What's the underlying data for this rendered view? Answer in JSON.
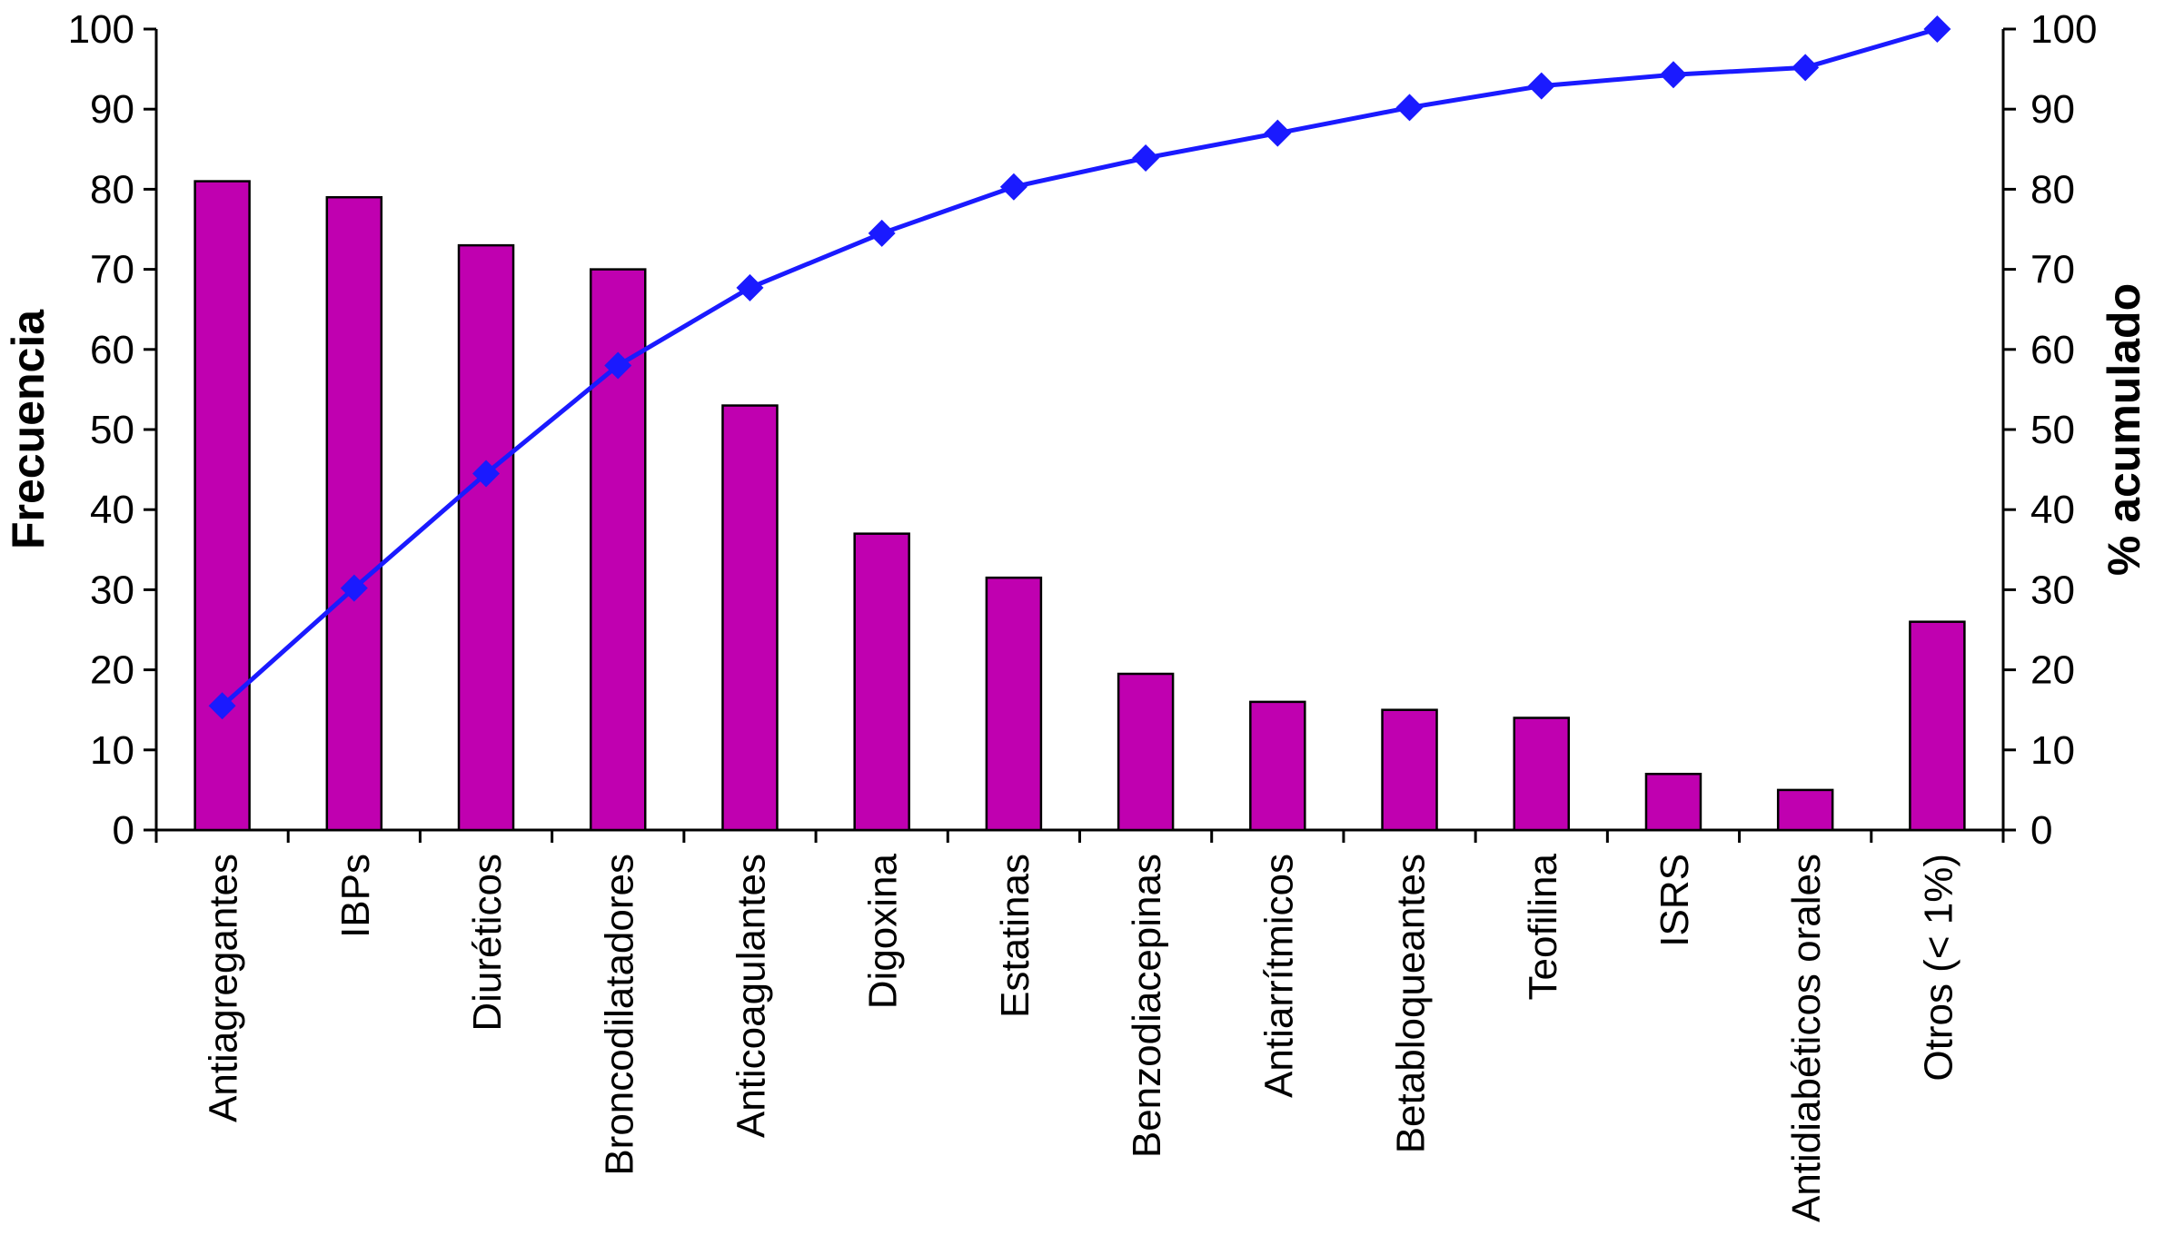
{
  "chart_data": {
    "type": "bar",
    "title": "",
    "xlabel": "",
    "ylabel": "Frecuencia",
    "y2label": "% acumulado",
    "categories": [
      "Antiagregantes",
      "IBPs",
      "Diuréticos",
      "Broncodilatadores",
      "Anticoagulantes",
      "Digoxina",
      "Estatinas",
      "Benzodiacepinas",
      "Antiarrítmicos",
      "Betabloqueantes",
      "Teofilina",
      "ISRS",
      "Antidiabéticos orales",
      "Otros (< 1%)"
    ],
    "ylim": [
      0,
      100
    ],
    "y2lim": [
      0,
      100
    ],
    "yticks": [
      0,
      10,
      20,
      30,
      40,
      50,
      60,
      70,
      80,
      90,
      100
    ],
    "y2ticks": [
      0,
      10,
      20,
      30,
      40,
      50,
      60,
      70,
      80,
      90,
      100
    ],
    "grid": false,
    "legend": "none",
    "series": [
      {
        "type": "bar",
        "axis": "left",
        "color": "#c000b0",
        "values": [
          81,
          79,
          73,
          70,
          53,
          37,
          31.5,
          19.5,
          16,
          15,
          14,
          7,
          5,
          26
        ]
      },
      {
        "type": "line",
        "axis": "right",
        "marker": "diamond",
        "color": "#1a1aff",
        "values": [
          15.5,
          30.2,
          44.5,
          58,
          67.7,
          74.5,
          80.3,
          83.9,
          87,
          90.2,
          92.9,
          94.3,
          95.2,
          100
        ]
      }
    ]
  }
}
